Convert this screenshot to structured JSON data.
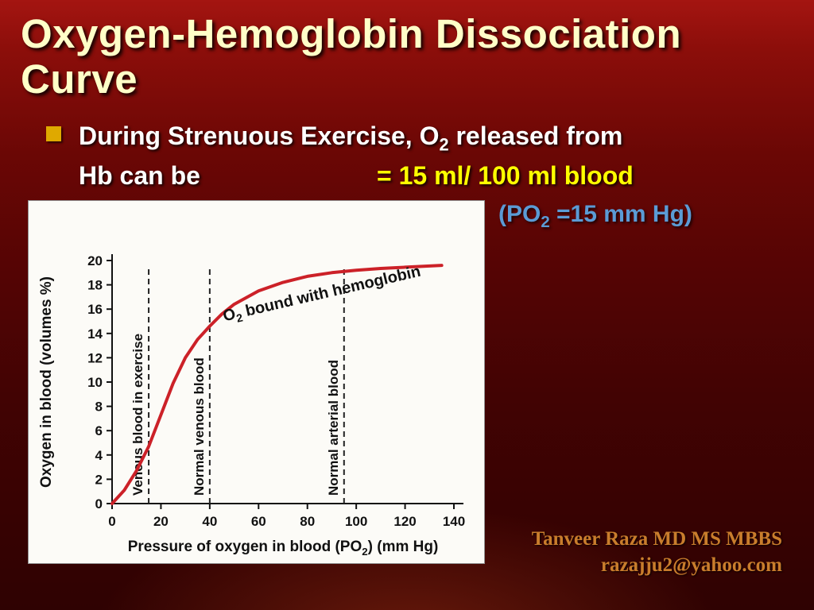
{
  "colors": {
    "title_cream": "#ffffc8",
    "highlight_yellow": "#ffff00",
    "note_blue": "#5b9bd5",
    "bullet_gold": "#dfa900",
    "credit_orange": "#c97d2c",
    "curve_red": "#cc2128"
  },
  "slide": {
    "title_line1": "Oxygen-Hemoglobin Dissociation",
    "title_line2": "Curve",
    "bullet": {
      "line1_pre": "During Strenuous Exercise, O",
      "line1_sub": "2",
      "line1_post": " released from",
      "line2_white": "Hb can be",
      "line2_yellow": "= 15 ml/ 100 ml blood"
    },
    "po2_note": {
      "pre": "(PO",
      "sub": "2",
      "post": " =15 mm Hg)"
    },
    "credit_line1": "Tanveer Raza MD MS MBBS",
    "credit_line2": "razajju2@yahoo.com"
  },
  "chart_data": {
    "type": "line",
    "title": "",
    "ylabel": "Oxygen in blood (volumes %)",
    "xlabel_parts": [
      "Pressure of oxygen in blood (PO",
      "2",
      ") (mm Hg)"
    ],
    "xlim": [
      0,
      140
    ],
    "ylim": [
      0,
      20
    ],
    "xticks": [
      0,
      20,
      40,
      60,
      80,
      100,
      120,
      140
    ],
    "yticks": [
      0,
      2,
      4,
      6,
      8,
      10,
      12,
      14,
      16,
      18,
      20
    ],
    "grid": false,
    "legend": "none",
    "series": [
      {
        "name": "O2 bound with hemoglobin",
        "color": "#cc2128",
        "x": [
          0,
          5,
          10,
          15,
          20,
          25,
          30,
          35,
          40,
          45,
          50,
          60,
          70,
          80,
          90,
          100,
          110,
          120,
          135
        ],
        "y": [
          0,
          1.1,
          2.7,
          4.7,
          7.3,
          9.9,
          12.0,
          13.5,
          14.6,
          15.6,
          16.4,
          17.5,
          18.2,
          18.7,
          19.0,
          19.2,
          19.35,
          19.45,
          19.6
        ]
      }
    ],
    "curve_label": {
      "parts": [
        "O",
        "2",
        " bound with hemoglobin"
      ],
      "x": 46,
      "y": 15.0,
      "angle": -13
    },
    "annotations": [
      {
        "label": "Venous blood in exercise",
        "x": 15,
        "y_top": 19.6
      },
      {
        "label": "Normal venous blood",
        "x": 40,
        "y_top": 19.6
      },
      {
        "label": "Normal arterial blood",
        "x": 95,
        "y_top": 19.6
      }
    ]
  }
}
